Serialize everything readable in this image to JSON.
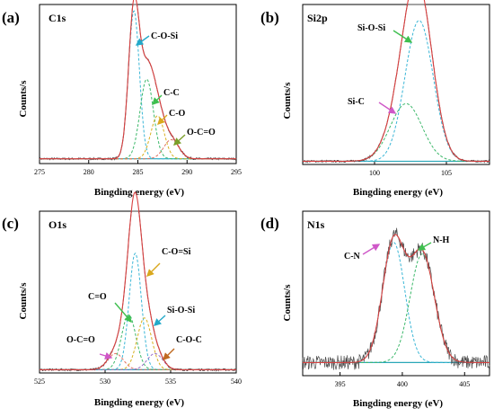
{
  "colors": {
    "envelope": "#d94040",
    "raw": "#4a4a4a",
    "baseline": "#2aa7b8",
    "components": [
      "#3ab6d6",
      "#3cb86a",
      "#d8b020",
      "#e07060",
      "#9a70c8",
      "#8a8a8a"
    ],
    "arrows": [
      "#23a9c9",
      "#3fbf4f",
      "#d9a81e",
      "#7a9e2a",
      "#cf58c8",
      "#e07050",
      "#c06a20"
    ]
  },
  "chart_data": [
    {
      "type": "line",
      "panel_letter": "(a)",
      "title": "C1s",
      "xlabel": "Bingding energy (eV)",
      "ylabel": "Counts/s",
      "xlim": [
        275,
        295
      ],
      "xticks": [
        275,
        280,
        285,
        290,
        295
      ],
      "ylim": [
        0,
        1
      ],
      "yticks_shown": false,
      "grid": false,
      "baseline": 0.03,
      "peaks": [
        {
          "label": "C-O-Si",
          "center": 284.6,
          "height": 0.93,
          "fwhm": 1.3,
          "arrow_color_index": 0
        },
        {
          "label": "C-C",
          "center": 285.9,
          "height": 0.5,
          "fwhm": 1.6,
          "arrow_color_index": 1
        },
        {
          "label": "C-O",
          "center": 287.0,
          "height": 0.27,
          "fwhm": 1.6,
          "arrow_color_index": 2
        },
        {
          "label": "O-C=O",
          "center": 288.4,
          "height": 0.12,
          "fwhm": 1.8,
          "arrow_color_index": 3
        }
      ]
    },
    {
      "type": "line",
      "panel_letter": "(b)",
      "title": "Si2p",
      "xlabel": "Bingding energy (eV)",
      "ylabel": "Counts/s",
      "xlim": [
        95,
        108
      ],
      "xticks": [
        100,
        105
      ],
      "ylim": [
        0,
        1
      ],
      "yticks_shown": false,
      "grid": false,
      "baseline": 0.02,
      "peaks": [
        {
          "label": "Si-O-Si",
          "center": 103.1,
          "height": 0.88,
          "fwhm": 2.3,
          "arrow_color_index": 1
        },
        {
          "label": "Si-C",
          "center": 102.2,
          "height": 0.36,
          "fwhm": 2.6,
          "arrow_color_index": 4
        }
      ]
    },
    {
      "type": "line",
      "panel_letter": "(c)",
      "title": "O1s",
      "xlabel": "Bingding energy (eV)",
      "ylabel": "Counts/s",
      "xlim": [
        525,
        540
      ],
      "xticks": [
        525,
        530,
        535,
        540
      ],
      "ylim": [
        0,
        1
      ],
      "yticks_shown": false,
      "grid": false,
      "baseline": 0.02,
      "peaks": [
        {
          "label": "C-O=Si",
          "center": 532.3,
          "height": 0.72,
          "fwhm": 1.1,
          "arrow_color_index": 2
        },
        {
          "label": "C=O",
          "center": 531.8,
          "height": 0.34,
          "fwhm": 1.3,
          "arrow_color_index": 1
        },
        {
          "label": "Si-O-Si",
          "center": 533.0,
          "height": 0.32,
          "fwhm": 1.3,
          "arrow_color_index": 0
        },
        {
          "label": "O-C=O",
          "center": 530.8,
          "height": 0.1,
          "fwhm": 1.4,
          "arrow_color_index": 4
        },
        {
          "label": "C-O-C",
          "center": 533.8,
          "height": 0.1,
          "fwhm": 1.4,
          "arrow_color_index": 6
        }
      ]
    },
    {
      "type": "line",
      "panel_letter": "(d)",
      "title": "N1s",
      "xlabel": "Bingding energy (eV)",
      "ylabel": "Counts/s",
      "xlim": [
        392,
        407
      ],
      "xticks": [
        395,
        400,
        405
      ],
      "ylim": [
        0,
        1
      ],
      "yticks_shown": false,
      "grid": false,
      "baseline": 0.08,
      "noisy": true,
      "peaks": [
        {
          "label": "C-N",
          "center": 399.3,
          "height": 0.73,
          "fwhm": 2.1,
          "arrow_color_index": 4
        },
        {
          "label": "N-H",
          "center": 401.6,
          "height": 0.66,
          "fwhm": 2.3,
          "arrow_color_index": 1
        }
      ]
    }
  ]
}
